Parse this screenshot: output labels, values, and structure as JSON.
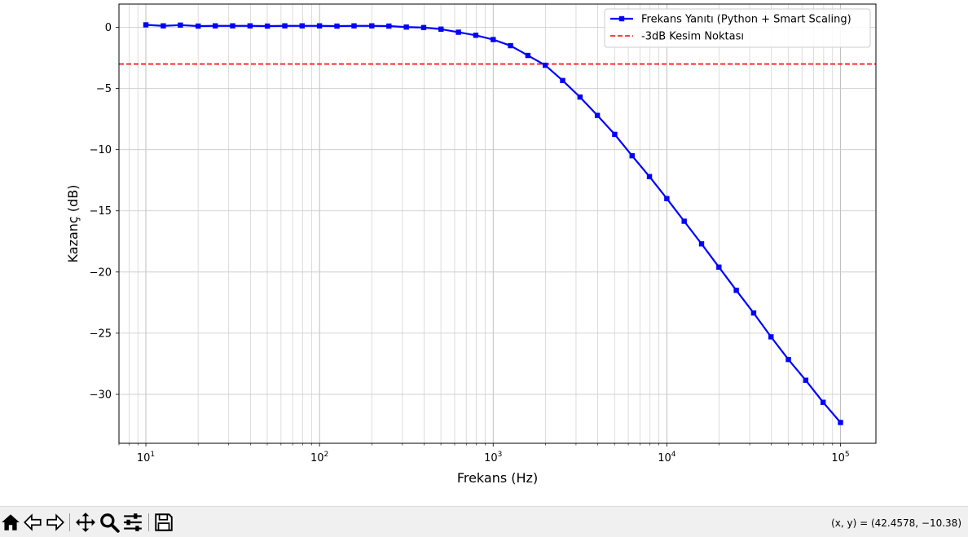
{
  "chart_data": {
    "type": "line",
    "xscale": "log",
    "xlim": [
      7,
      160000
    ],
    "ylim": [
      -34,
      1.9
    ],
    "xlabel": "Frekans (Hz)",
    "ylabel": "Kazanç (dB)",
    "grid": true,
    "grid_minor": true,
    "legend_position": "upper right",
    "x_ticks": [
      {
        "value": 10,
        "base": "10",
        "exp": "1"
      },
      {
        "value": 100,
        "base": "10",
        "exp": "2"
      },
      {
        "value": 1000,
        "base": "10",
        "exp": "3"
      },
      {
        "value": 10000,
        "base": "10",
        "exp": "4"
      },
      {
        "value": 100000,
        "base": "10",
        "exp": "5"
      }
    ],
    "y_ticks": [
      {
        "value": 0,
        "label": "0"
      },
      {
        "value": -5,
        "label": "−5"
      },
      {
        "value": -10,
        "label": "−10"
      },
      {
        "value": -15,
        "label": "−15"
      },
      {
        "value": -20,
        "label": "−20"
      },
      {
        "value": -25,
        "label": "−25"
      },
      {
        "value": -30,
        "label": "−30"
      }
    ],
    "series": [
      {
        "name": "Frekans Yanıtı (Python + Smart Scaling)",
        "color": "#0000ff",
        "marker": "square",
        "line_style": "solid",
        "x": [
          10,
          12.6,
          15.8,
          20,
          25.1,
          31.6,
          39.8,
          50.1,
          63.1,
          79.4,
          100,
          126,
          158,
          200,
          251,
          316,
          398,
          501,
          631,
          794,
          1000,
          1259,
          1585,
          1995,
          2512,
          3162,
          3981,
          5012,
          6310,
          7943,
          10000,
          12589,
          15849,
          19953,
          25119,
          31623,
          39811,
          50119,
          63096,
          79433,
          100000
        ],
        "y": [
          0.2,
          0.12,
          0.18,
          0.1,
          0.12,
          0.12,
          0.12,
          0.1,
          0.12,
          0.12,
          0.12,
          0.1,
          0.12,
          0.12,
          0.1,
          0.02,
          -0.02,
          -0.15,
          -0.4,
          -0.65,
          -1.0,
          -1.5,
          -2.3,
          -3.1,
          -4.35,
          -5.7,
          -7.2,
          -8.75,
          -10.5,
          -12.2,
          -14.0,
          -15.85,
          -17.7,
          -19.6,
          -21.5,
          -23.35,
          -25.3,
          -27.15,
          -28.85,
          -30.65,
          -32.3
        ]
      }
    ],
    "reference_lines": [
      {
        "name": "-3dB Kesim Noktası",
        "y": -3,
        "color": "#ff0000",
        "line_style": "dashed"
      }
    ]
  },
  "toolbar": {
    "buttons": [
      {
        "name": "home-button",
        "icon": "home-icon"
      },
      {
        "name": "back-button",
        "icon": "back-arrow-icon"
      },
      {
        "name": "forward-button",
        "icon": "forward-arrow-icon"
      },
      {
        "name": "pan-button",
        "icon": "move-icon"
      },
      {
        "name": "zoom-button",
        "icon": "zoom-icon"
      },
      {
        "name": "configure-subplots-button",
        "icon": "sliders-icon"
      },
      {
        "name": "save-button",
        "icon": "save-icon"
      }
    ],
    "coords_text": "(x, y) = (42.4578, −10.38)"
  }
}
